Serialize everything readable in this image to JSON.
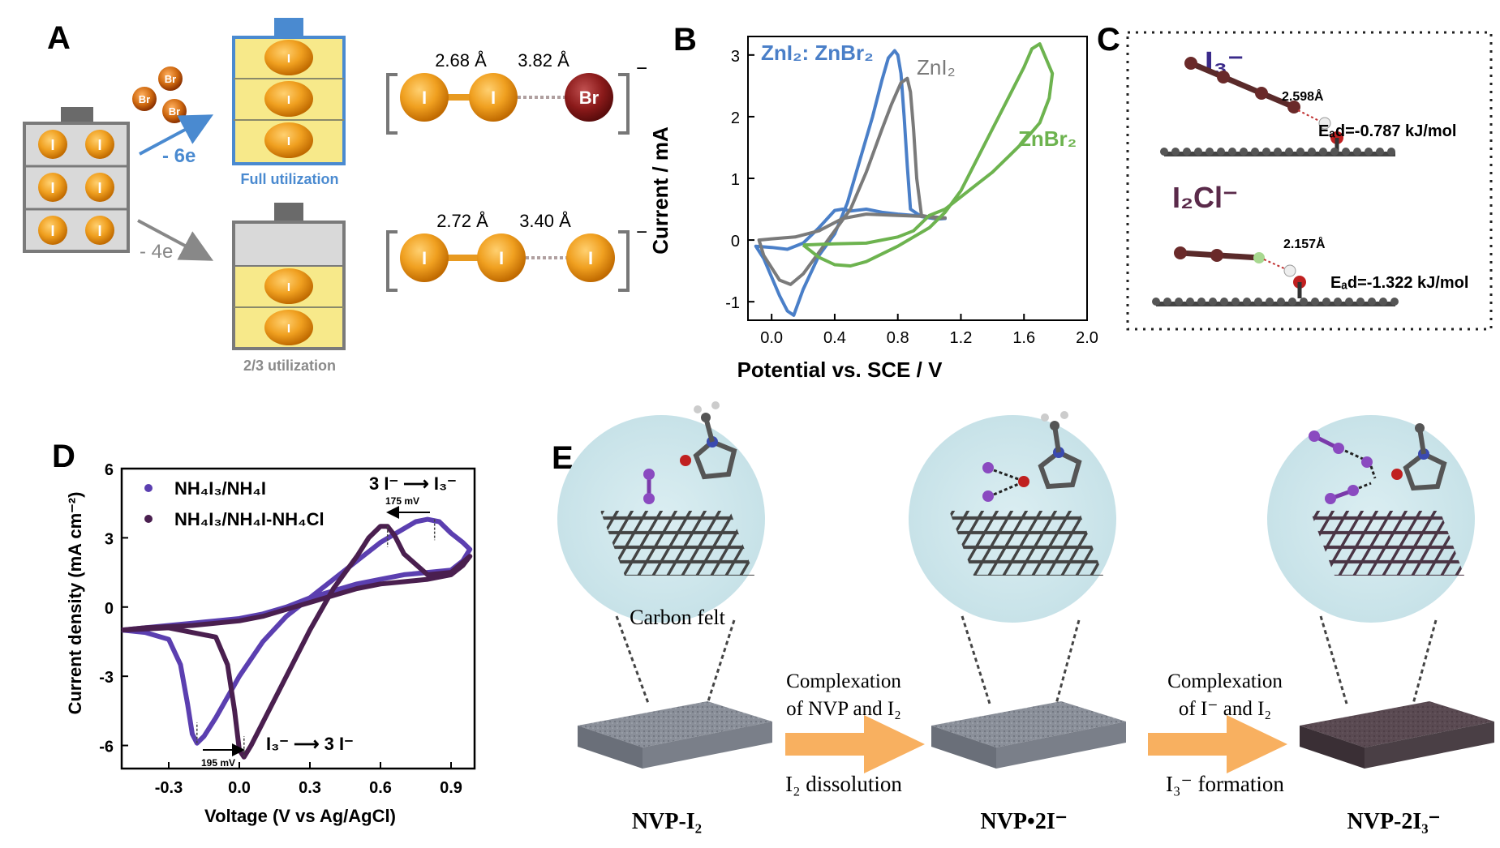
{
  "panels": {
    "A": {
      "label": "A",
      "br_ion": "Br",
      "i_ion": "I",
      "arrow_up_label": "- 6e",
      "arrow_down_label": "- 4e",
      "cell_ibr": "I",
      "cell_ii": "I",
      "full_caption": "Full utilization",
      "partial_caption": "2/3 utilization",
      "mol_top": {
        "bond1": "2.68 Å",
        "bond2": "3.82 Å",
        "atoms": [
          "I",
          "I",
          "Br"
        ]
      },
      "mol_bottom": {
        "bond1": "2.72 Å",
        "bond2": "3.40 Å",
        "atoms": [
          "I",
          "I",
          "I"
        ]
      },
      "charge": "−"
    },
    "B": {
      "label": "B",
      "ylabel": "Current / mA",
      "xlabel": "Potential vs. SCE / V",
      "legend": {
        "zni2_znbr2": "ZnI₂: ZnBr₂",
        "zni2": "ZnI₂",
        "znbr2": "ZnBr₂"
      }
    },
    "C": {
      "label": "C",
      "top_species": "I₃⁻",
      "top_distance": "2.598Å",
      "top_energy": "Eₐd=-0.787 kJ/mol",
      "bottom_species": "I₂Cl⁻",
      "bottom_distance": "2.157Å",
      "bottom_energy": "Eₐd=-1.322 kJ/mol"
    },
    "D": {
      "label": "D",
      "ylabel": "Current density (mA cm⁻²)",
      "xlabel": "Voltage (V vs Ag/AgCl)",
      "legend1": "NH₄I₃/NH₄I",
      "legend2": "NH₄I₃/NH₄I-NH₄Cl",
      "ann_ox": "3 I⁻ ⟶ I₃⁻",
      "ann_ox_mv": "175 mV",
      "ann_red": "I₃⁻ ⟶ 3 I⁻",
      "ann_red_mv": "195 mV"
    },
    "E": {
      "label": "E",
      "carbon_felt": "Carbon felt",
      "step1_top": "Complexation",
      "step1_mid": "of NVP and I₂",
      "step1_bottom": "I₂ dissolution",
      "step2_top": "Complexation",
      "step2_mid": "of I⁻ and I₂",
      "step2_bottom": "I₃⁻ formation",
      "state1": "NVP-I₂",
      "state2": "NVP•2I⁻",
      "state3": "NVP-2I₃⁻"
    }
  },
  "chart_data": [
    {
      "type": "line",
      "title": "",
      "xlabel": "Potential vs. SCE / V",
      "ylabel": "Current / mA",
      "xlim": [
        -0.15,
        2.0
      ],
      "ylim": [
        -1.3,
        3.3
      ],
      "xticks": [
        0.0,
        0.4,
        0.8,
        1.2,
        1.6,
        2.0
      ],
      "yticks": [
        -1,
        0,
        1,
        2,
        3
      ],
      "grid": false,
      "legend": "inline labels",
      "series": [
        {
          "name": "ZnI₂: ZnBr₂",
          "color": "#4a7fc8",
          "x": [
            -0.05,
            0.05,
            0.1,
            0.14,
            0.2,
            0.3,
            0.4,
            0.48,
            0.56,
            0.64,
            0.7,
            0.74,
            0.78,
            0.8,
            0.82,
            0.84,
            0.86,
            0.88,
            0.95,
            1.05,
            1.1,
            1.0,
            0.9,
            0.8,
            0.7,
            0.6,
            0.5,
            0.45,
            0.4,
            0.3,
            0.2,
            0.1,
            0.0,
            -0.1,
            -0.05
          ],
          "y": [
            -0.3,
            -0.9,
            -1.15,
            -1.22,
            -0.8,
            -0.25,
            0.1,
            0.6,
            1.3,
            2.0,
            2.6,
            2.95,
            3.07,
            3.0,
            2.7,
            2.0,
            1.2,
            0.5,
            0.38,
            0.34,
            0.35,
            0.38,
            0.4,
            0.42,
            0.45,
            0.5,
            0.47,
            0.5,
            0.48,
            0.2,
            -0.05,
            -0.15,
            -0.12,
            -0.1,
            -0.3
          ]
        },
        {
          "name": "ZnI₂",
          "color": "#7a7a7a",
          "x": [
            -0.05,
            0.05,
            0.12,
            0.2,
            0.3,
            0.4,
            0.5,
            0.6,
            0.7,
            0.76,
            0.82,
            0.86,
            0.88,
            0.9,
            0.92,
            0.95,
            1.05,
            1.1,
            1.0,
            0.8,
            0.6,
            0.45,
            0.3,
            0.15,
            0.0,
            -0.08,
            -0.05
          ],
          "y": [
            -0.25,
            -0.65,
            -0.72,
            -0.55,
            -0.2,
            0.15,
            0.5,
            1.1,
            1.8,
            2.2,
            2.55,
            2.62,
            2.4,
            1.8,
            1.0,
            0.4,
            0.35,
            0.36,
            0.38,
            0.4,
            0.42,
            0.35,
            0.15,
            0.05,
            0.02,
            0.0,
            -0.25
          ]
        },
        {
          "name": "ZnBr₂",
          "color": "#6db34f",
          "x": [
            0.2,
            0.3,
            0.4,
            0.5,
            0.6,
            0.8,
            1.0,
            1.1,
            1.2,
            1.3,
            1.4,
            1.5,
            1.6,
            1.65,
            1.7,
            1.78,
            1.76,
            1.7,
            1.6,
            1.5,
            1.4,
            1.3,
            1.2,
            1.1,
            1.0,
            0.9,
            0.8,
            0.6,
            0.4,
            0.2
          ],
          "y": [
            -0.08,
            -0.28,
            -0.4,
            -0.42,
            -0.35,
            -0.1,
            0.2,
            0.45,
            0.8,
            1.3,
            1.8,
            2.3,
            2.8,
            3.1,
            3.18,
            2.7,
            2.3,
            1.9,
            1.6,
            1.35,
            1.1,
            0.9,
            0.7,
            0.5,
            0.4,
            0.15,
            0.05,
            -0.05,
            -0.06,
            -0.08
          ]
        }
      ]
    },
    {
      "type": "line",
      "title": "",
      "xlabel": "Voltage (V vs Ag/AgCl)",
      "ylabel": "Current density (mA cm⁻²)",
      "xlim": [
        -0.5,
        1.0
      ],
      "ylim": [
        -7,
        6
      ],
      "xticks": [
        -0.3,
        0.0,
        0.3,
        0.6,
        0.9
      ],
      "yticks": [
        -6,
        -3,
        0,
        3,
        6
      ],
      "grid": false,
      "legend": "top-left",
      "series": [
        {
          "name": "NH₄I₃/NH₄I",
          "color": "#5b3fb0",
          "x": [
            -0.5,
            -0.4,
            -0.3,
            -0.25,
            -0.22,
            -0.2,
            -0.18,
            -0.15,
            -0.1,
            0.0,
            0.1,
            0.2,
            0.3,
            0.4,
            0.5,
            0.6,
            0.7,
            0.75,
            0.8,
            0.85,
            0.9,
            0.95,
            0.98,
            0.95,
            0.9,
            0.8,
            0.7,
            0.6,
            0.5,
            0.4,
            0.3,
            0.2,
            0.1,
            0.0,
            -0.1,
            -0.2,
            -0.3,
            -0.4,
            -0.5
          ],
          "y": [
            -1.0,
            -1.1,
            -1.4,
            -2.5,
            -4.2,
            -5.5,
            -5.9,
            -5.6,
            -4.8,
            -3.0,
            -1.5,
            -0.4,
            0.4,
            1.2,
            2.0,
            2.8,
            3.4,
            3.7,
            3.8,
            3.7,
            3.2,
            2.8,
            2.5,
            2.0,
            1.6,
            1.5,
            1.4,
            1.2,
            1.0,
            0.7,
            0.4,
            0.0,
            -0.3,
            -0.5,
            -0.6,
            -0.7,
            -0.8,
            -0.9,
            -1.0
          ]
        },
        {
          "name": "NH₄I₃/NH₄I-NH₄Cl",
          "color": "#4a1f4f",
          "x": [
            -0.5,
            -0.3,
            -0.1,
            -0.05,
            -0.02,
            0.0,
            0.02,
            0.05,
            0.1,
            0.2,
            0.3,
            0.4,
            0.5,
            0.55,
            0.6,
            0.63,
            0.66,
            0.7,
            0.8,
            0.9,
            0.98,
            0.95,
            0.9,
            0.8,
            0.7,
            0.6,
            0.5,
            0.4,
            0.3,
            0.2,
            0.1,
            0.0,
            -0.1,
            -0.2,
            -0.3,
            -0.4,
            -0.5
          ],
          "y": [
            -1.0,
            -0.9,
            -1.3,
            -2.5,
            -4.5,
            -6.2,
            -6.5,
            -6.0,
            -5.0,
            -3.0,
            -1.0,
            0.8,
            2.2,
            3.0,
            3.5,
            3.5,
            3.1,
            2.3,
            1.4,
            1.5,
            2.2,
            1.8,
            1.4,
            1.2,
            1.1,
            1.0,
            0.8,
            0.5,
            0.2,
            -0.1,
            -0.4,
            -0.6,
            -0.7,
            -0.8,
            -0.85,
            -0.9,
            -1.0
          ]
        }
      ]
    }
  ]
}
